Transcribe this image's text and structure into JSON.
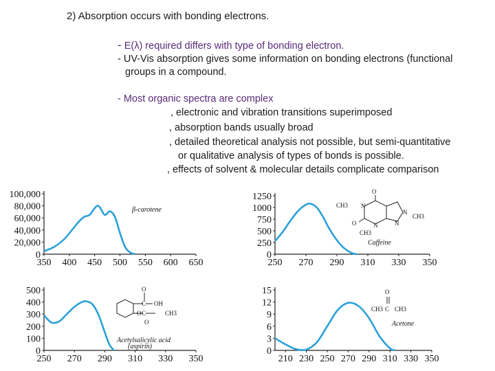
{
  "heading": "2) Absorption occurs with bonding electrons.",
  "bullets": {
    "b1_dash": "-",
    "b1": "E(λ) required differs with type of bonding electron.",
    "b2a": "- UV-Vis absorption gives some information on bonding electrons (functional",
    "b2b": "groups in a compound.",
    "b3": "- Most organic spectra are complex",
    "s1": ", electronic and vibration transitions superimposed",
    "s2": ", absorption bands usually broad",
    "s3a": ", detailed theoretical analysis not possible, but semi-quantitative",
    "s3b": "or qualitative analysis of types of bonds is possible.",
    "s4": ", effects of solvent & molecular details complicate comparison"
  },
  "chart_data": [
    {
      "type": "line",
      "name_label": "β-carotene",
      "x_ticks": [
        "350",
        "400",
        "450",
        "500",
        "550",
        "600",
        "650"
      ],
      "y_ticks": [
        "100,000",
        "80,000",
        "60,000",
        "40,000",
        "20,000",
        "0"
      ],
      "xlim": [
        350,
        650
      ],
      "ylim": [
        0,
        100000
      ],
      "x": [
        350,
        370,
        390,
        410,
        420,
        430,
        440,
        450,
        455,
        460,
        470,
        480,
        490,
        500,
        510,
        520,
        530
      ],
      "y": [
        5000,
        12000,
        25000,
        45000,
        55000,
        62000,
        65000,
        76000,
        80000,
        78000,
        65000,
        71000,
        62000,
        35000,
        12000,
        3000,
        0
      ]
    },
    {
      "type": "line",
      "name_label": "Caffeine",
      "x_ticks": [
        "250",
        "270",
        "290",
        "310",
        "330",
        "350"
      ],
      "y_ticks": [
        "1250",
        "1000",
        "750",
        "500",
        "250",
        "0"
      ],
      "xlim": [
        250,
        350
      ],
      "ylim": [
        0,
        1250
      ],
      "x": [
        250,
        255,
        260,
        265,
        270,
        273,
        277,
        281,
        285,
        290,
        295,
        300,
        303
      ],
      "y": [
        280,
        480,
        720,
        930,
        1060,
        1080,
        1000,
        800,
        550,
        300,
        120,
        20,
        0
      ],
      "chem": [
        "CH3",
        "O",
        "N",
        "N",
        "CH3",
        "O",
        "N",
        "N",
        "CH3"
      ]
    },
    {
      "type": "line",
      "name_label": "Acetylsalicylic acid",
      "name_label_2": "(aspirin)",
      "x_ticks": [
        "250",
        "270",
        "290",
        "310",
        "330",
        "350"
      ],
      "y_ticks": [
        "500",
        "400",
        "300",
        "200",
        "100",
        "0"
      ],
      "xlim": [
        250,
        350
      ],
      "ylim": [
        0,
        500
      ],
      "x": [
        250,
        255,
        260,
        265,
        270,
        275,
        278,
        282,
        286,
        290,
        293,
        296
      ],
      "y": [
        290,
        230,
        240,
        300,
        360,
        400,
        405,
        380,
        290,
        150,
        50,
        0
      ],
      "chem": [
        "O",
        "C",
        "OH",
        "O",
        "C",
        "CH3",
        "O"
      ]
    },
    {
      "type": "line",
      "name_label": "Acetone",
      "x_ticks": [
        "210",
        "230",
        "250",
        "270",
        "290",
        "310",
        "330",
        "350"
      ],
      "y_ticks": [
        "15",
        "12",
        "9",
        "6",
        "3",
        "0"
      ],
      "xlim": [
        200,
        350
      ],
      "ylim": [
        0,
        15
      ],
      "x": [
        200,
        210,
        220,
        230,
        240,
        250,
        260,
        270,
        280,
        290,
        300,
        310,
        315
      ],
      "y": [
        3,
        1.5,
        0.3,
        0.2,
        2,
        6,
        10,
        11.8,
        11,
        8,
        3.5,
        0.5,
        0
      ],
      "chem": [
        "O",
        "CH3",
        "C",
        "CH3"
      ]
    }
  ]
}
